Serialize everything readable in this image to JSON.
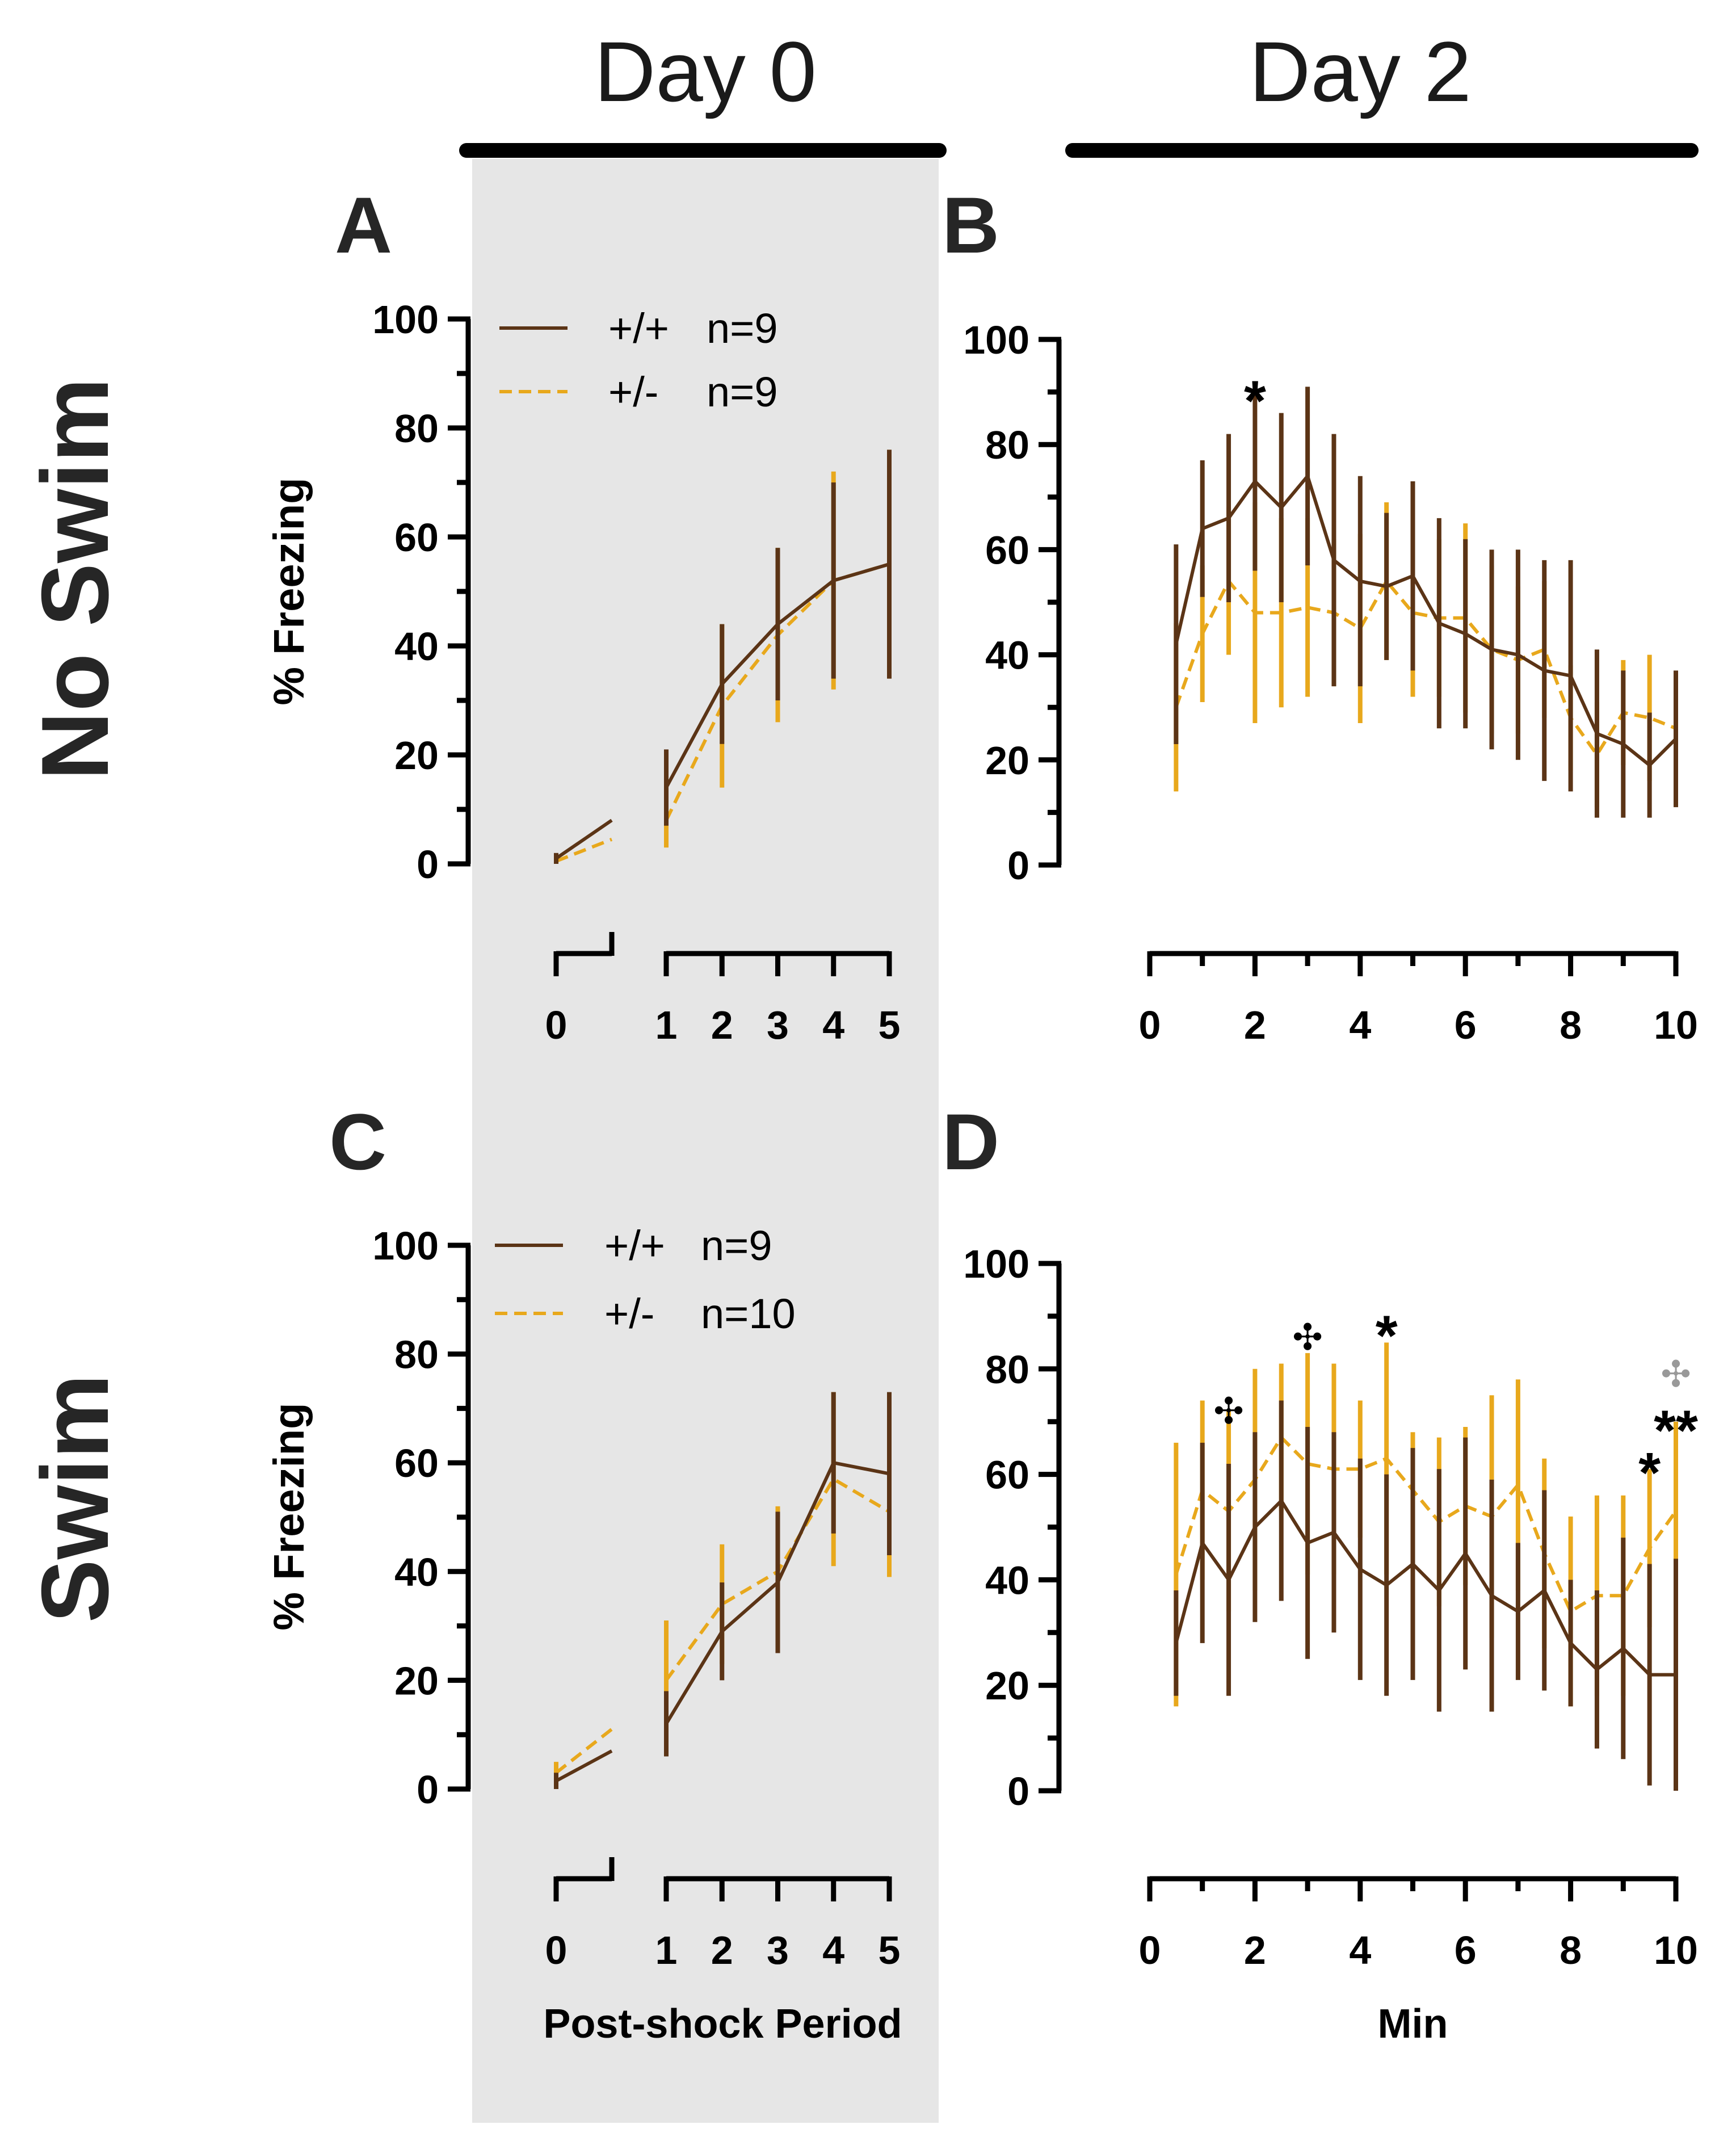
{
  "headers": {
    "day0": "Day 0",
    "day2": "Day 2"
  },
  "rows": {
    "top": "No Swim",
    "bottom": "Swim"
  },
  "colors": {
    "wt": "#5b3416",
    "het": "#e8a81c",
    "shade": "#e6e6e6",
    "axis": "#000000",
    "cross_gray": "#999999"
  },
  "y_label": "% Freezing",
  "chart_data": [
    {
      "panel": "A",
      "type": "line",
      "title": "",
      "xlabel": "",
      "ylabel": "% Freezing",
      "ylim": [
        0,
        100
      ],
      "yticks": [
        "0",
        "20",
        "40",
        "60",
        "80",
        "100"
      ],
      "xticks": [
        "0",
        "1",
        "2",
        "3",
        "4",
        "5"
      ],
      "legend": [
        {
          "key": "wt",
          "genotype": "+/+",
          "n": "n=9"
        },
        {
          "key": "het",
          "genotype": "+/-",
          "n": "n=9"
        }
      ],
      "series": [
        {
          "name": "+/+",
          "key": "wt",
          "segments": [
            {
              "x": [
                0,
                0.5
              ],
              "y": [
                1,
                8
              ],
              "err": [
                1,
                0
              ]
            },
            {
              "x": [
                1,
                2,
                3,
                4,
                5
              ],
              "y": [
                14,
                33,
                44,
                52,
                55
              ],
              "err": [
                7,
                11,
                14,
                18,
                21
              ]
            }
          ]
        },
        {
          "name": "+/-",
          "key": "het",
          "segments": [
            {
              "x": [
                0,
                0.5
              ],
              "y": [
                0.5,
                4.5
              ],
              "err": [
                0.5,
                0
              ]
            },
            {
              "x": [
                1,
                2,
                3,
                4,
                5
              ],
              "y": [
                8,
                29,
                42,
                52,
                55
              ],
              "err": [
                5,
                15,
                16,
                20,
                21
              ]
            }
          ]
        }
      ],
      "annotations": []
    },
    {
      "panel": "B",
      "type": "line",
      "title": "",
      "xlabel": "",
      "ylabel": "",
      "ylim": [
        0,
        100
      ],
      "yticks": [
        "0",
        "20",
        "40",
        "60",
        "80",
        "100"
      ],
      "xticks": [
        "0",
        "2",
        "4",
        "6",
        "8",
        "10"
      ],
      "series": [
        {
          "name": "+/+",
          "key": "wt",
          "segments": [
            {
              "x": [
                0.5,
                1,
                1.5,
                2,
                2.5,
                3,
                3.5,
                4,
                4.5,
                5,
                5.5,
                6,
                6.5,
                7,
                7.5,
                8,
                8.5,
                9,
                9.5,
                10
              ],
              "y": [
                42,
                64,
                66,
                73,
                68,
                74,
                58,
                54,
                53,
                55,
                46,
                44,
                41,
                40,
                37,
                36,
                25,
                23,
                19,
                24
              ],
              "err": [
                19,
                13,
                16,
                17,
                18,
                17,
                24,
                20,
                14,
                18,
                20,
                18,
                19,
                20,
                21,
                22,
                16,
                14,
                10,
                13
              ]
            }
          ]
        },
        {
          "name": "+/-",
          "key": "het",
          "segments": [
            {
              "x": [
                0.5,
                1,
                1.5,
                2,
                2.5,
                3,
                3.5,
                4,
                4.5,
                5,
                5.5,
                6,
                6.5,
                7,
                7.5,
                8,
                8.5,
                9,
                9.5,
                10
              ],
              "y": [
                30,
                44,
                54,
                48,
                48,
                49,
                48,
                45,
                54,
                48,
                47,
                47,
                41,
                39,
                41,
                28,
                21,
                29,
                28,
                26
              ],
              "err": [
                16,
                13,
                14,
                21,
                18,
                17,
                14,
                18,
                15,
                16,
                15,
                18,
                16,
                14,
                13,
                10,
                10,
                10,
                12,
                10
              ]
            }
          ]
        }
      ],
      "annotations": [
        {
          "text": "*",
          "x": 2,
          "y": 90,
          "style": "ann",
          "color": "#000000"
        }
      ]
    },
    {
      "panel": "C",
      "type": "line",
      "title": "",
      "xlabel": "Post-shock Period",
      "ylabel": "% Freezing",
      "ylim": [
        0,
        100
      ],
      "yticks": [
        "0",
        "20",
        "40",
        "60",
        "80",
        "100"
      ],
      "xticks": [
        "0",
        "1",
        "2",
        "3",
        "4",
        "5"
      ],
      "legend": [
        {
          "key": "wt",
          "genotype": "+/+",
          "n": "n=9"
        },
        {
          "key": "het",
          "genotype": "+/-",
          "n": "n=10"
        }
      ],
      "series": [
        {
          "name": "+/+",
          "key": "wt",
          "segments": [
            {
              "x": [
                0,
                0.5
              ],
              "y": [
                1.5,
                7
              ],
              "err": [
                1.5,
                0
              ]
            },
            {
              "x": [
                1,
                2,
                3,
                4,
                5
              ],
              "y": [
                12,
                29,
                38,
                60,
                58
              ],
              "err": [
                6,
                9,
                13,
                13,
                15
              ]
            }
          ]
        },
        {
          "name": "+/-",
          "key": "het",
          "segments": [
            {
              "x": [
                0,
                0.5
              ],
              "y": [
                3,
                11
              ],
              "err": [
                2,
                0
              ]
            },
            {
              "x": [
                1,
                2,
                3,
                4,
                5
              ],
              "y": [
                20,
                34,
                40,
                57,
                51
              ],
              "err": [
                11,
                11,
                12,
                16,
                12
              ]
            }
          ]
        }
      ],
      "annotations": []
    },
    {
      "panel": "D",
      "type": "line",
      "title": "",
      "xlabel": "Min",
      "ylabel": "",
      "ylim": [
        0,
        100
      ],
      "yticks": [
        "0",
        "20",
        "40",
        "60",
        "80",
        "100"
      ],
      "xticks": [
        "0",
        "2",
        "4",
        "6",
        "8",
        "10"
      ],
      "series": [
        {
          "name": "+/+",
          "key": "wt",
          "segments": [
            {
              "x": [
                0.5,
                1,
                1.5,
                2,
                2.5,
                3,
                3.5,
                4,
                4.5,
                5,
                5.5,
                6,
                6.5,
                7,
                7.5,
                8,
                8.5,
                9,
                9.5,
                10
              ],
              "y": [
                28,
                47,
                40,
                50,
                55,
                47,
                49,
                42,
                39,
                43,
                38,
                45,
                37,
                34,
                38,
                28,
                23,
                27,
                22,
                22
              ],
              "err": [
                10,
                19,
                22,
                18,
                19,
                22,
                19,
                21,
                21,
                22,
                23,
                22,
                22,
                13,
                19,
                12,
                15,
                21,
                21,
                22
              ]
            }
          ]
        },
        {
          "name": "+/-",
          "key": "het",
          "segments": [
            {
              "x": [
                0.5,
                1,
                1.5,
                2,
                2.5,
                3,
                3.5,
                4,
                4.5,
                5,
                5.5,
                6,
                6.5,
                7,
                7.5,
                8,
                8.5,
                9,
                9.5,
                10
              ],
              "y": [
                41,
                57,
                53,
                59,
                67,
                62,
                61,
                61,
                63,
                57,
                51,
                54,
                52,
                58,
                45,
                34,
                37,
                37,
                46,
                53
              ],
              "err": [
                25,
                17,
                19,
                21,
                14,
                21,
                20,
                13,
                22,
                11,
                16,
                15,
                23,
                20,
                18,
                18,
                19,
                19,
                15,
                17
              ]
            }
          ]
        }
      ],
      "annotations": [
        {
          "text": "✣",
          "x": 1.5,
          "y": 72,
          "style": "cross",
          "color": "#000000"
        },
        {
          "text": "✣",
          "x": 3.0,
          "y": 86,
          "style": "cross",
          "color": "#000000"
        },
        {
          "text": "*",
          "x": 4.5,
          "y": 88,
          "style": "ann",
          "color": "#000000"
        },
        {
          "text": "*",
          "x": 9.5,
          "y": 62,
          "style": "ann",
          "color": "#000000"
        },
        {
          "text": "✣",
          "x": 10.0,
          "y": 79,
          "style": "cross",
          "color": "#999999"
        },
        {
          "text": "**",
          "x": 10.0,
          "y": 70,
          "style": "ann",
          "color": "#000000"
        }
      ]
    }
  ]
}
